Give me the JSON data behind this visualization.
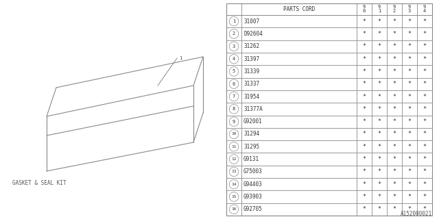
{
  "diagram_label": "GASKET & SEAL KIT",
  "watermark": "A152000021",
  "parts_cord_header": "PARTS CORD",
  "year_headers": [
    "9\n0",
    "9\n1",
    "9\n2",
    "9\n3",
    "9\n4"
  ],
  "parts": [
    {
      "num": 1,
      "code": "31007"
    },
    {
      "num": 2,
      "code": "D92604"
    },
    {
      "num": 3,
      "code": "31262"
    },
    {
      "num": 4,
      "code": "31397"
    },
    {
      "num": 5,
      "code": "31339"
    },
    {
      "num": 6,
      "code": "31337"
    },
    {
      "num": 7,
      "code": "31954"
    },
    {
      "num": 8,
      "code": "31377A"
    },
    {
      "num": 9,
      "code": "G92001"
    },
    {
      "num": 10,
      "code": "31294"
    },
    {
      "num": 11,
      "code": "31295"
    },
    {
      "num": 12,
      "code": "G9131"
    },
    {
      "num": 13,
      "code": "G75003"
    },
    {
      "num": 14,
      "code": "G94403"
    },
    {
      "num": 15,
      "code": "G93903"
    },
    {
      "num": 16,
      "code": "G92705"
    }
  ],
  "bg_color": "#ffffff",
  "line_color": "#555555",
  "box_line_color": "#888888",
  "table_line_color": "#888888"
}
